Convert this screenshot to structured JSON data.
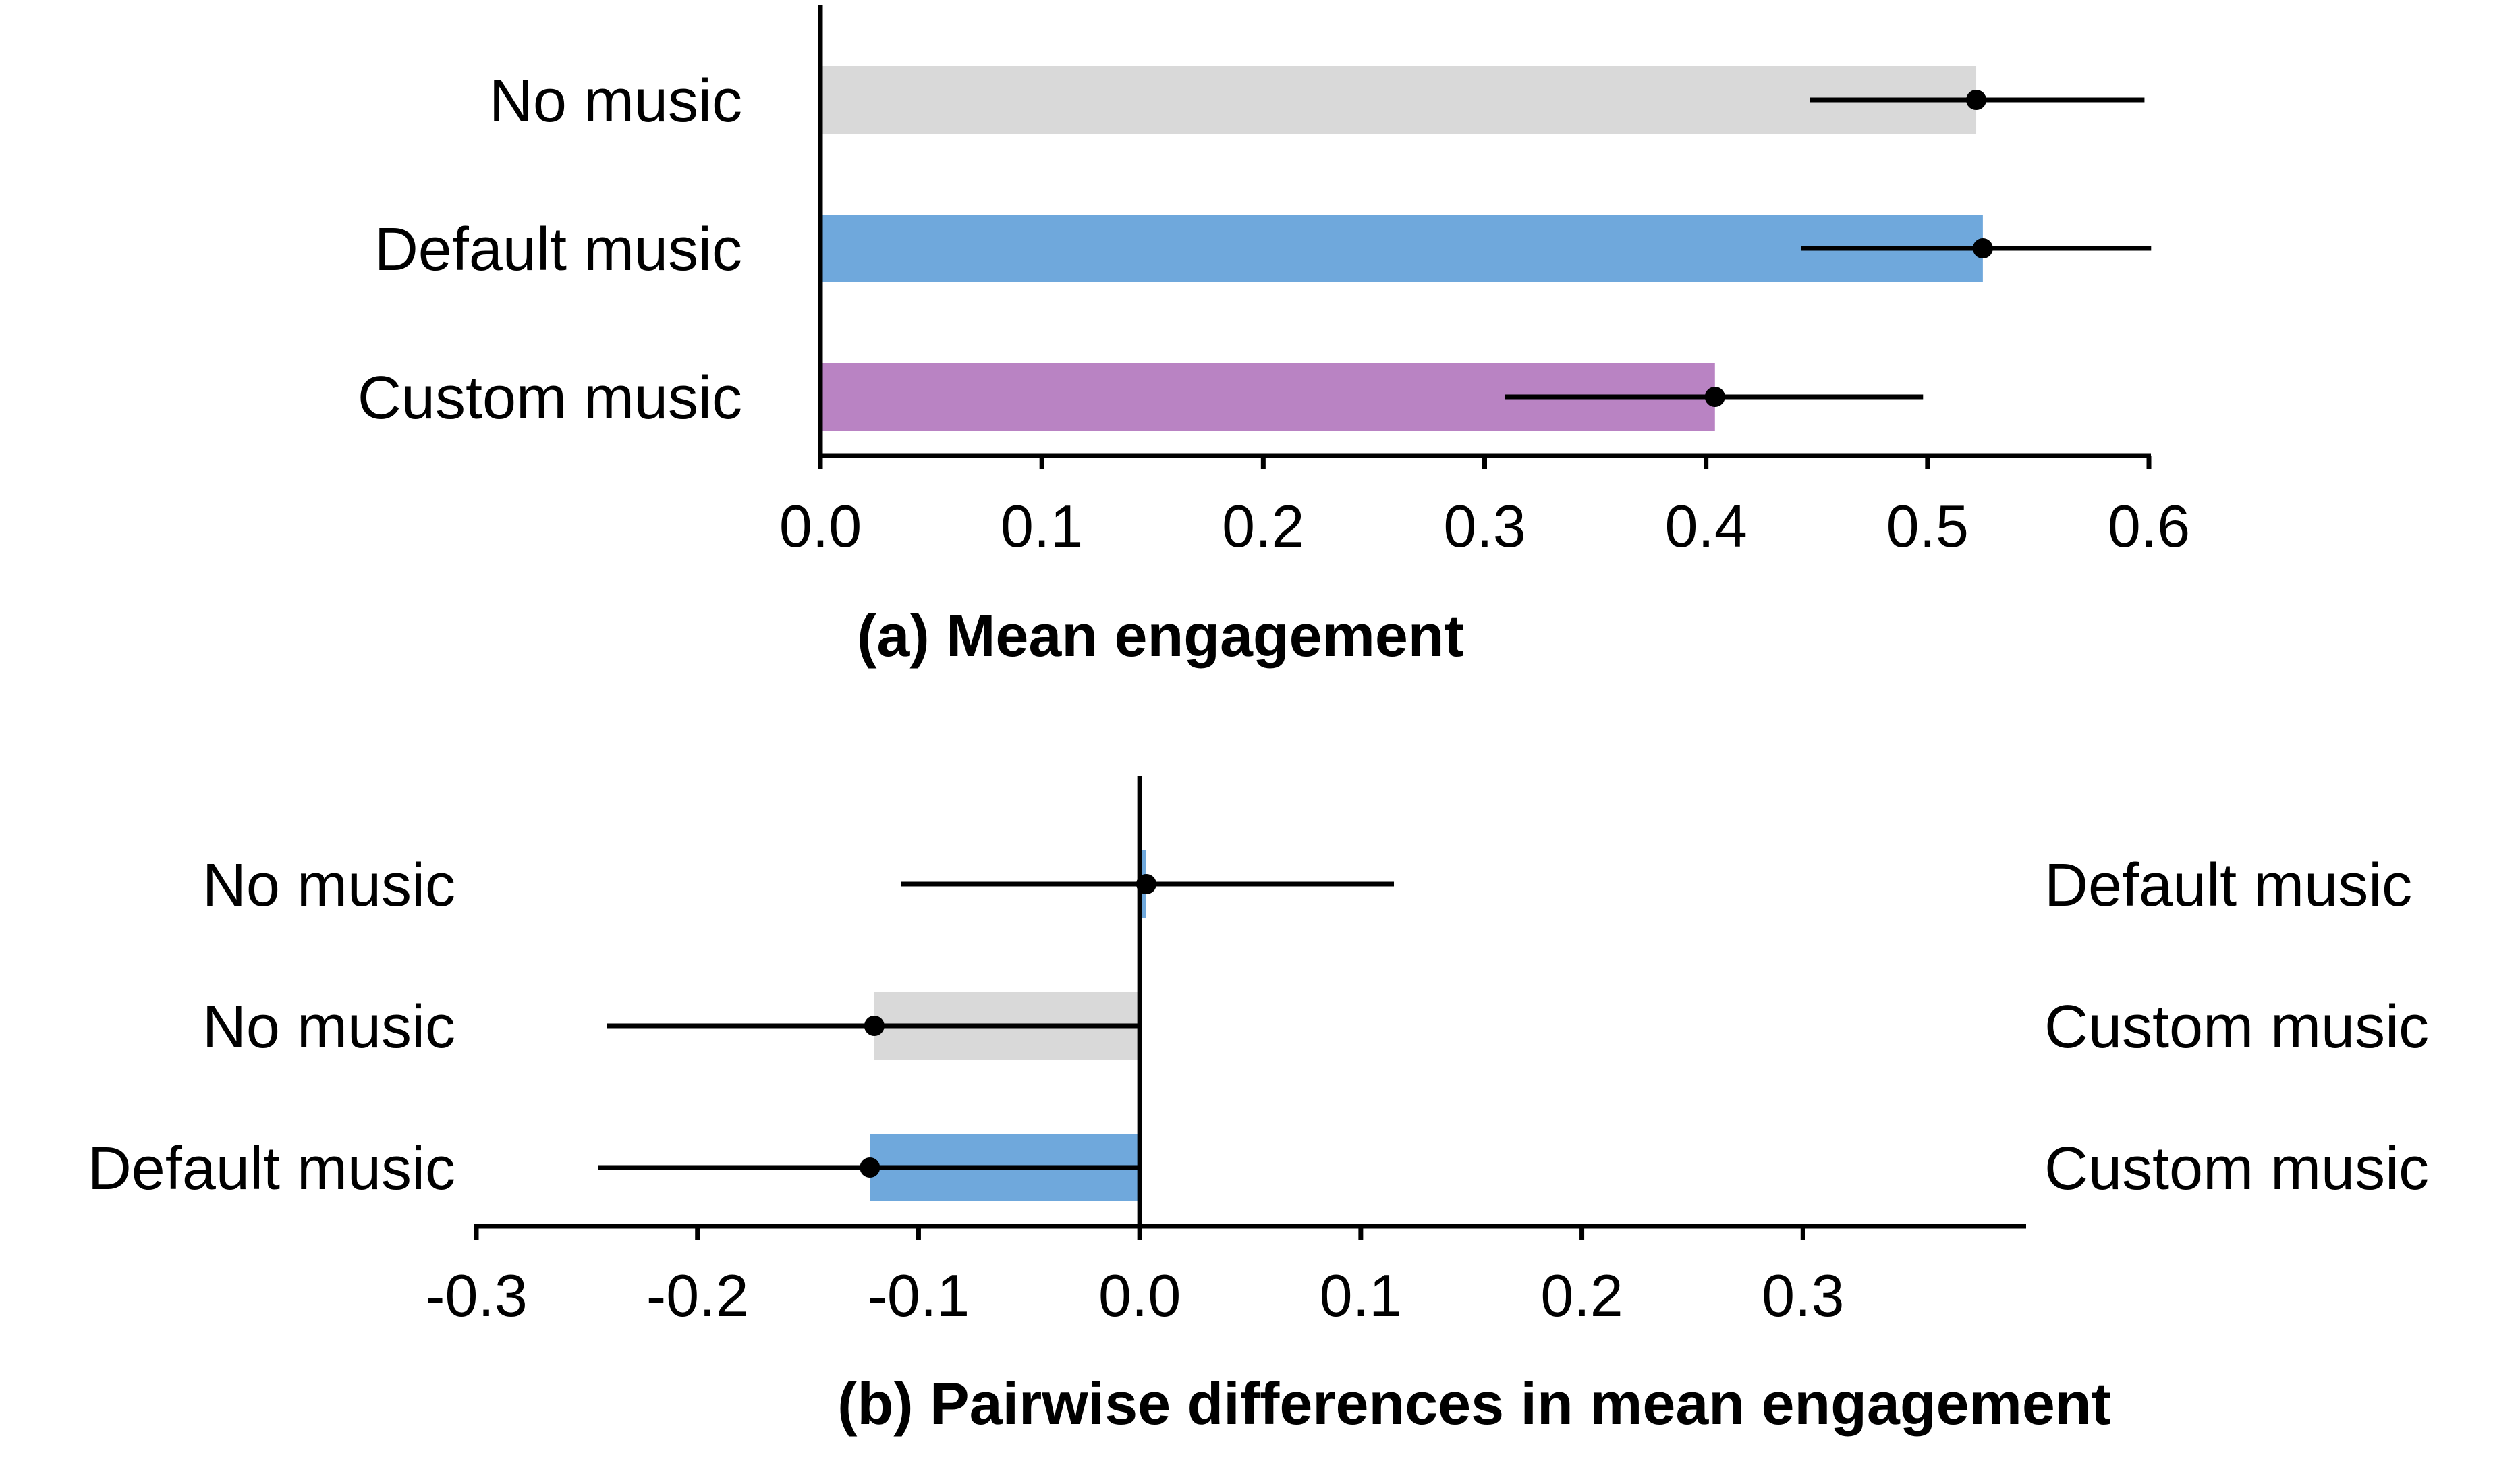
{
  "chart_data": [
    {
      "id": "a",
      "type": "bar",
      "orientation": "horizontal",
      "title": "(a) Mean engagement",
      "xlabel": "",
      "ylabel": "",
      "xlim": [
        0.0,
        0.6
      ],
      "xticks": [
        "0.0",
        "0.1",
        "0.2",
        "0.3",
        "0.4",
        "0.5",
        "0.6"
      ],
      "categories": [
        "No music",
        "Default music",
        "Custom music"
      ],
      "values": [
        0.522,
        0.525,
        0.404
      ],
      "ci_low": [
        0.447,
        0.443,
        0.309
      ],
      "ci_high": [
        0.598,
        0.601,
        0.498
      ],
      "colors": [
        "#d9d9d9",
        "#6fa8dc",
        "#b983c3"
      ]
    },
    {
      "id": "b",
      "type": "bar",
      "orientation": "horizontal",
      "title": "(b) Pairwise differences in mean engagement",
      "xlabel": "",
      "ylabel": "",
      "xlim": [
        -0.3,
        0.4
      ],
      "xticks": [
        "-0.3",
        "-0.2",
        "-0.1",
        "0.0",
        "0.1",
        "0.2",
        "0.3"
      ],
      "left_categories": [
        "No music",
        "No music",
        "Default music"
      ],
      "right_categories": [
        "Default music",
        "Custom music",
        "Custom music"
      ],
      "values": [
        0.003,
        -0.12,
        -0.122
      ],
      "ci_low": [
        -0.108,
        -0.241,
        -0.245
      ],
      "ci_high": [
        0.115,
        0.0,
        0.0
      ],
      "colors": [
        "#6fa8dc",
        "#d9d9d9",
        "#6fa8dc"
      ]
    }
  ]
}
